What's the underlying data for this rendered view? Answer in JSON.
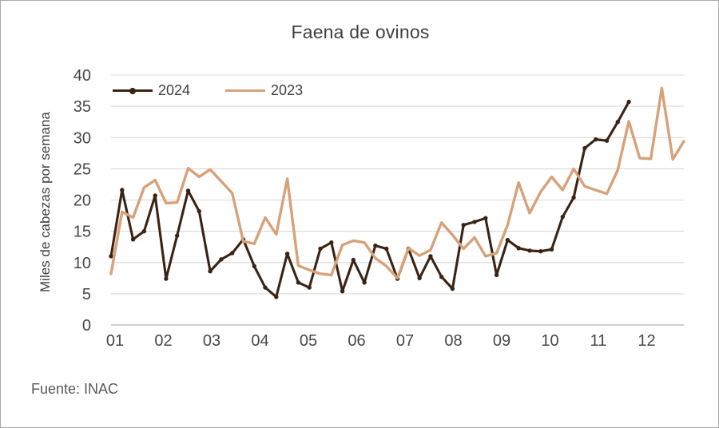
{
  "chart_data": {
    "type": "line",
    "title": "Faena de ovinos",
    "ylabel": "Miles de cabezas por semana",
    "xlabel": "",
    "source_note": "Fuente: INAC",
    "x_unit": "week",
    "months": [
      "01",
      "02",
      "03",
      "04",
      "05",
      "06",
      "07",
      "08",
      "09",
      "10",
      "11",
      "12"
    ],
    "y_ticks": [
      0,
      5,
      10,
      15,
      20,
      25,
      30,
      35,
      40
    ],
    "ylim": [
      0,
      40
    ],
    "grid": "horizontal",
    "legend_position": "top-left",
    "colors": {
      "grid": "#d9d9d9",
      "axis": "#c2c2c2",
      "text": "#474747"
    },
    "series": [
      {
        "name": "2024",
        "color": "#3b2314",
        "marker": true,
        "values": [
          11.0,
          21.6,
          13.7,
          15.0,
          20.7,
          7.4,
          14.3,
          21.5,
          18.2,
          8.6,
          10.5,
          11.5,
          13.7,
          9.4,
          6.0,
          4.5,
          11.4,
          6.8,
          6.0,
          12.2,
          13.2,
          5.4,
          10.4,
          6.8,
          12.7,
          12.2,
          7.4,
          12.2,
          7.5,
          11.0,
          7.7,
          5.8,
          16.0,
          16.5,
          17.1,
          8.0,
          13.6,
          12.3,
          11.9,
          11.8,
          12.1,
          17.3,
          20.4,
          28.3,
          29.7,
          29.5,
          32.5,
          35.7
        ]
      },
      {
        "name": "2023",
        "color": "#d7a17a",
        "marker": false,
        "values": [
          8.2,
          18.1,
          17.2,
          22.0,
          23.2,
          19.5,
          19.6,
          25.1,
          23.7,
          24.9,
          23.0,
          21.1,
          13.4,
          13.0,
          17.2,
          14.5,
          23.4,
          9.5,
          8.8,
          8.2,
          8.0,
          12.8,
          13.5,
          13.2,
          10.7,
          9.4,
          7.5,
          12.3,
          11.1,
          12.0,
          16.4,
          14.4,
          12.2,
          14.0,
          11.0,
          11.5,
          16.0,
          22.8,
          17.9,
          21.3,
          23.7,
          21.6,
          25.0,
          22.2,
          21.6,
          21.0,
          24.8,
          32.6,
          26.7,
          26.6,
          37.9,
          26.5,
          29.4
        ]
      }
    ]
  }
}
